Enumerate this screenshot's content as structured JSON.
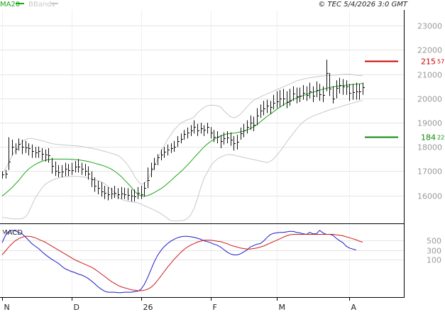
{
  "header": {
    "legend": [
      {
        "label": "MA20",
        "color": "#19a619"
      },
      {
        "label": "BBands",
        "color": "#c8c8c8"
      }
    ],
    "copyright": "© TEC 5/4/2026 3:0 GMT"
  },
  "macd_panel": {
    "title": "MACD"
  },
  "chart_data": [
    {
      "type": "ohlc",
      "title": "",
      "x_labels": [
        {
          "label": "N",
          "index": 0
        },
        {
          "label": "D",
          "index": 21
        },
        {
          "label": "26",
          "index": 42
        },
        {
          "label": "F",
          "index": 63
        },
        {
          "label": "M",
          "index": 83
        },
        {
          "label": "A",
          "index": 105
        }
      ],
      "y_ticks": [
        16000,
        17000,
        18000,
        19000,
        20000,
        21000,
        22000,
        23000
      ],
      "y_tick_labels": [
        "16000",
        "17000",
        "18000",
        "19000",
        "20000",
        "21000",
        "22000",
        "23000"
      ],
      "ylim": [
        14850,
        23650
      ],
      "grid": true,
      "levels": [
        {
          "value": 21557,
          "label_main": "215",
          "label_sup": "57",
          "color": "#cc0000"
        },
        {
          "value": 18422,
          "label_main": "184",
          "label_sup": "22",
          "color": "#0a8a0a"
        }
      ],
      "close": [
        16880,
        16890,
        17380,
        18000,
        17920,
        18120,
        18020,
        17990,
        17950,
        17820,
        17760,
        17830,
        17720,
        17680,
        17670,
        17220,
        17000,
        16950,
        16980,
        17100,
        17050,
        17040,
        17200,
        17200,
        17100,
        17000,
        16900,
        16650,
        16400,
        16300,
        16180,
        16100,
        16050,
        16080,
        16110,
        16060,
        16070,
        16050,
        16030,
        16000,
        15960,
        16100,
        16050,
        16320,
        16630,
        17100,
        17300,
        17560,
        17700,
        17800,
        17880,
        17960,
        18000,
        18250,
        18330,
        18540,
        18600,
        18680,
        18820,
        18690,
        18780,
        18700,
        18840,
        18600,
        18430,
        18420,
        18240,
        18350,
        18400,
        18300,
        18140,
        18200,
        18550,
        18690,
        18820,
        19000,
        18900,
        19280,
        19500,
        19600,
        19700,
        19650,
        19820,
        19880,
        20000,
        20000,
        19850,
        19900,
        20200,
        20080,
        20120,
        20230,
        20140,
        20300,
        20110,
        20340,
        20170,
        20130,
        21050,
        20400,
        20010,
        20420,
        20550,
        20480,
        20500,
        20220,
        20250,
        20280,
        20300,
        20450
      ],
      "high": [
        17000,
        17050,
        18400,
        18300,
        18150,
        18350,
        18300,
        18250,
        18150,
        18100,
        18000,
        18020,
        17950,
        17900,
        17950,
        17550,
        17400,
        17250,
        17250,
        17350,
        17300,
        17350,
        17420,
        17500,
        17350,
        17300,
        17200,
        17000,
        16750,
        16600,
        16550,
        16400,
        16350,
        16320,
        16400,
        16300,
        16350,
        16320,
        16300,
        16250,
        16250,
        16350,
        16400,
        16550,
        17150,
        17350,
        17550,
        17700,
        17900,
        18000,
        18100,
        18150,
        18250,
        18450,
        18550,
        18700,
        18800,
        18900,
        19100,
        18950,
        19000,
        18900,
        19000,
        18820,
        18700,
        18650,
        18500,
        18600,
        18650,
        18600,
        18450,
        18500,
        18800,
        18950,
        19100,
        19300,
        19250,
        19600,
        19750,
        19900,
        19950,
        19900,
        20150,
        20300,
        20350,
        20400,
        20300,
        20400,
        20500,
        20450,
        20450,
        20550,
        20500,
        20650,
        20500,
        20700,
        20600,
        20500,
        21600,
        21050,
        20500,
        20750,
        20850,
        20800,
        20750,
        20600,
        20600,
        20650,
        20600,
        20650
      ],
      "low": [
        16700,
        16700,
        17050,
        17650,
        17700,
        17850,
        17700,
        17750,
        17650,
        17550,
        17550,
        17550,
        17450,
        17400,
        17350,
        16900,
        16800,
        16750,
        16750,
        16800,
        16800,
        16850,
        16950,
        16950,
        16850,
        16800,
        16650,
        16350,
        16150,
        16050,
        15950,
        15850,
        15800,
        15850,
        15900,
        15850,
        15850,
        15850,
        15800,
        15750,
        15750,
        15850,
        15850,
        15950,
        16300,
        16750,
        17050,
        17250,
        17450,
        17550,
        17650,
        17750,
        17800,
        18000,
        18150,
        18300,
        18350,
        18450,
        18550,
        18450,
        18550,
        18450,
        18550,
        18350,
        18200,
        18150,
        17950,
        18100,
        18150,
        18050,
        17850,
        17900,
        18300,
        18400,
        18550,
        18700,
        18650,
        18900,
        19200,
        19300,
        19400,
        19350,
        19550,
        19600,
        19650,
        19700,
        19600,
        19700,
        19900,
        19800,
        19850,
        19950,
        19900,
        20000,
        19850,
        20050,
        19900,
        19850,
        20300,
        20100,
        19800,
        20000,
        20200,
        20150,
        20150,
        19900,
        19950,
        19950,
        19950,
        20150
      ],
      "series": [
        {
          "name": "MA20",
          "color": "#19a619",
          "values": [
            15980,
            16080,
            16200,
            16330,
            16470,
            16620,
            16790,
            16950,
            17090,
            17190,
            17280,
            17350,
            17410,
            17450,
            17480,
            17500,
            17500,
            17500,
            17500,
            17500,
            17500,
            17490,
            17480,
            17470,
            17450,
            17430,
            17400,
            17370,
            17330,
            17290,
            17250,
            17210,
            17150,
            17090,
            17000,
            16900,
            16780,
            16640,
            16500,
            16350,
            16180,
            16050,
            15990,
            15970,
            16000,
            16050,
            16120,
            16200,
            16280,
            16380,
            16490,
            16610,
            16740,
            16860,
            16980,
            17110,
            17250,
            17400,
            17550,
            17700,
            17850,
            18000,
            18120,
            18220,
            18310,
            18390,
            18450,
            18500,
            18540,
            18560,
            18570,
            18590,
            18620,
            18650,
            18700,
            18760,
            18830,
            18920,
            19030,
            19140,
            19250,
            19350,
            19450,
            19550,
            19640,
            19730,
            19820,
            19890,
            19960,
            20020,
            20070,
            20120,
            20170,
            20220,
            20260,
            20300,
            20340,
            20380,
            20420,
            20450,
            20480,
            20500,
            20520,
            20530,
            20550,
            20560,
            20580,
            20590,
            20600,
            20620
          ]
        },
        {
          "name": "BBands upper",
          "color": "#c8c8c8",
          "values": [
            16900,
            17100,
            17350,
            17650,
            17850,
            18050,
            18200,
            18300,
            18350,
            18350,
            18320,
            18290,
            18260,
            18220,
            18180,
            18140,
            18120,
            18100,
            18090,
            18080,
            18070,
            18060,
            18050,
            18040,
            18020,
            18000,
            17970,
            17950,
            17920,
            17890,
            17850,
            17820,
            17780,
            17740,
            17700,
            17650,
            17550,
            17420,
            17250,
            17050,
            16800,
            16600,
            16460,
            16500,
            16650,
            16900,
            17200,
            17500,
            17800,
            18050,
            18300,
            18500,
            18700,
            18850,
            18980,
            19050,
            19120,
            19160,
            19230,
            19400,
            19520,
            19630,
            19700,
            19720,
            19720,
            19700,
            19650,
            19500,
            19370,
            19250,
            19200,
            19250,
            19350,
            19500,
            19650,
            19800,
            19920,
            20000,
            20060,
            20120,
            20180,
            20240,
            20300,
            20360,
            20420,
            20480,
            20540,
            20600,
            20660,
            20720,
            20760,
            20800,
            20830,
            20850,
            20870,
            20890,
            20910,
            20930,
            20940,
            20950,
            20960,
            20970,
            20980,
            20990,
            21000,
            21000,
            20980,
            20960,
            20950,
            20940
          ]
        },
        {
          "name": "BBands lower",
          "color": "#c8c8c8",
          "values": [
            15100,
            15080,
            15060,
            15040,
            15030,
            15030,
            15050,
            15100,
            15300,
            15600,
            15900,
            16100,
            16300,
            16450,
            16550,
            16620,
            16680,
            16720,
            16750,
            16770,
            16780,
            16790,
            16790,
            16780,
            16770,
            16750,
            16720,
            16690,
            16650,
            16610,
            16560,
            16480,
            16380,
            16250,
            16100,
            15950,
            15850,
            15790,
            15760,
            15740,
            15720,
            15700,
            15650,
            15580,
            15520,
            15460,
            15400,
            15330,
            15250,
            15160,
            15060,
            14960,
            14950,
            14950,
            14960,
            14980,
            15050,
            15200,
            15450,
            15850,
            16300,
            16700,
            16950,
            17200,
            17380,
            17500,
            17580,
            17640,
            17680,
            17690,
            17660,
            17630,
            17600,
            17570,
            17540,
            17510,
            17480,
            17450,
            17420,
            17390,
            17360,
            17400,
            17500,
            17650,
            17820,
            18000,
            18200,
            18380,
            18560,
            18740,
            18900,
            19030,
            19130,
            19210,
            19270,
            19330,
            19380,
            19430,
            19480,
            19530,
            19570,
            19610,
            19650,
            19690,
            19730,
            19770,
            19810,
            19850,
            19890,
            19920
          ]
        }
      ]
    },
    {
      "type": "line",
      "title": "MACD",
      "y_ticks": [
        100,
        300,
        500
      ],
      "y_tick_labels": [
        "100",
        "300",
        "500"
      ],
      "ylim": [
        -660,
        800
      ],
      "grid": true,
      "series": [
        {
          "name": "MACD",
          "color": "#1a1acc",
          "values": [
            450,
            600,
            680,
            700,
            690,
            660,
            630,
            570,
            500,
            430,
            380,
            330,
            270,
            210,
            160,
            110,
            70,
            30,
            -30,
            -80,
            -110,
            -140,
            -160,
            -190,
            -210,
            -240,
            -280,
            -330,
            -390,
            -450,
            -500,
            -540,
            -560,
            -560,
            -560,
            -570,
            -570,
            -560,
            -560,
            -560,
            -550,
            -540,
            -500,
            -400,
            -260,
            -100,
            60,
            190,
            290,
            370,
            430,
            480,
            520,
            550,
            570,
            580,
            580,
            570,
            560,
            540,
            520,
            490,
            470,
            450,
            420,
            400,
            360,
            310,
            260,
            220,
            200,
            200,
            220,
            260,
            300,
            360,
            390,
            420,
            430,
            480,
            550,
            610,
            640,
            650,
            660,
            660,
            670,
            680,
            680,
            660,
            650,
            630,
            620,
            660,
            630,
            630,
            700,
            650,
            620,
            620,
            600,
            540,
            490,
            450,
            380,
            340,
            320,
            300
          ]
        },
        {
          "name": "Signal",
          "color": "#cc1a1a",
          "values": [
            200,
            280,
            360,
            430,
            490,
            530,
            560,
            580,
            580,
            570,
            550,
            520,
            490,
            460,
            420,
            380,
            340,
            300,
            260,
            220,
            180,
            140,
            100,
            70,
            40,
            10,
            -20,
            -50,
            -90,
            -140,
            -190,
            -240,
            -290,
            -340,
            -380,
            -420,
            -450,
            -470,
            -490,
            -510,
            -520,
            -530,
            -530,
            -520,
            -500,
            -460,
            -400,
            -320,
            -230,
            -140,
            -50,
            30,
            110,
            180,
            250,
            310,
            360,
            400,
            430,
            460,
            480,
            500,
            500,
            500,
            490,
            480,
            470,
            450,
            430,
            400,
            380,
            360,
            340,
            330,
            320,
            320,
            330,
            340,
            360,
            380,
            410,
            440,
            470,
            500,
            530,
            560,
            590,
            610,
            620,
            620,
            620,
            620,
            620,
            620,
            620,
            620,
            620,
            620,
            620,
            620,
            620,
            610,
            600,
            590,
            570,
            550,
            530,
            510,
            480,
            460
          ]
        }
      ]
    }
  ]
}
